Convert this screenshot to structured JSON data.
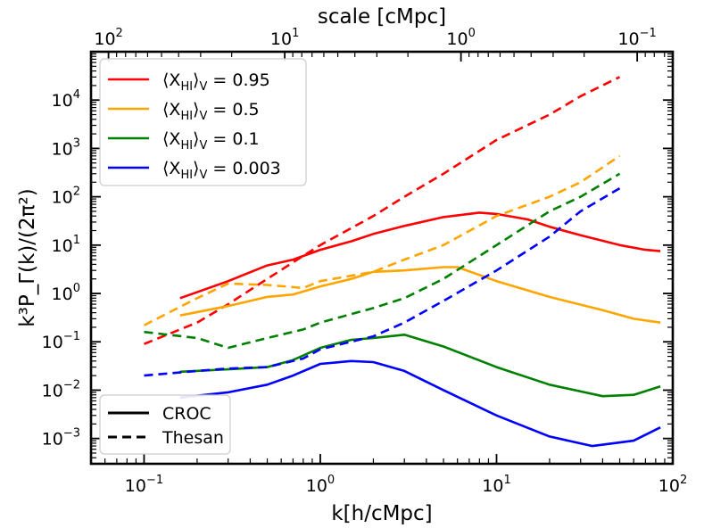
{
  "chart_data": {
    "type": "line",
    "title": "",
    "xlabel": "k[h/cMpc]",
    "ylabel": "k³P_Γ(k)/(2π²)",
    "top_xlabel": "scale [cMpc]",
    "x_scale": "log",
    "y_scale": "log",
    "xlim": [
      0.05,
      100
    ],
    "ylim": [
      0.0003,
      100000
    ],
    "x_ticks": [
      {
        "value": 0.1,
        "base": "10",
        "exp": "−1"
      },
      {
        "value": 1,
        "base": "10",
        "exp": "0"
      },
      {
        "value": 10,
        "base": "10",
        "exp": "1"
      },
      {
        "value": 100,
        "base": "10",
        "exp": "2"
      }
    ],
    "y_ticks": [
      {
        "value": 0.001,
        "base": "10",
        "exp": "−3"
      },
      {
        "value": 0.01,
        "base": "10",
        "exp": "−2"
      },
      {
        "value": 0.1,
        "base": "10",
        "exp": "−1"
      },
      {
        "value": 1,
        "base": "10",
        "exp": "0"
      },
      {
        "value": 10,
        "base": "10",
        "exp": "1"
      },
      {
        "value": 100,
        "base": "10",
        "exp": "2"
      },
      {
        "value": 1000,
        "base": "10",
        "exp": "3"
      },
      {
        "value": 10000,
        "base": "10",
        "exp": "4"
      }
    ],
    "top_ticks": [
      {
        "scale": 100,
        "base": "10",
        "exp": "2"
      },
      {
        "scale": 10,
        "base": "10",
        "exp": "1"
      },
      {
        "scale": 1,
        "base": "10",
        "exp": "0"
      },
      {
        "scale": 0.1,
        "base": "10",
        "exp": "−1"
      }
    ],
    "legend_position": "upper left",
    "legend_entries": [
      {
        "prefix": "⟨X",
        "sub": "HI",
        "mid": "⟩",
        "sub2": "V",
        "value": " = 0.95",
        "color": "#ff0000"
      },
      {
        "prefix": "⟨X",
        "sub": "HI",
        "mid": "⟩",
        "sub2": "V",
        "value": " = 0.5",
        "color": "#ffa500"
      },
      {
        "prefix": "⟨X",
        "sub": "HI",
        "mid": "⟩",
        "sub2": "V",
        "value": " = 0.1",
        "color": "#008000"
      },
      {
        "prefix": "⟨X",
        "sub": "HI",
        "mid": "⟩",
        "sub2": "V",
        "value": " = 0.003",
        "color": "#0000ff"
      }
    ],
    "style_legend_position": "lower left",
    "style_legend": [
      {
        "label": "CROC",
        "dash": "solid"
      },
      {
        "label": "Thesan",
        "dash": "dashed"
      }
    ],
    "series": [
      {
        "name": "⟨X_HI⟩_V = 0.95",
        "model": "CROC",
        "color": "#ff0000",
        "dash": "solid",
        "x": [
          0.16,
          0.3,
          0.5,
          0.7,
          1.0,
          1.5,
          2.0,
          3.0,
          5.0,
          8.0,
          10.0,
          15.0,
          20.0,
          30.0,
          50.0,
          70.0,
          85.0
        ],
        "y": [
          0.8,
          1.8,
          3.8,
          5.0,
          8.0,
          12.0,
          17.0,
          25.0,
          38.0,
          47.0,
          44.0,
          34.0,
          24.0,
          16.0,
          10.0,
          8.0,
          7.5
        ]
      },
      {
        "name": "⟨X_HI⟩_V = 0.95",
        "model": "Thesan",
        "color": "#ff0000",
        "dash": "dashed",
        "x": [
          0.1,
          0.2,
          0.3,
          0.5,
          0.8,
          1.0,
          2.0,
          3.0,
          5.0,
          10.0,
          20.0,
          30.0,
          50.0
        ],
        "y": [
          0.09,
          0.25,
          0.6,
          2.0,
          6.0,
          10.0,
          40.0,
          100.0,
          300.0,
          1500.0,
          5000.0,
          12000.0,
          30000.0
        ]
      },
      {
        "name": "⟨X_HI⟩_V = 0.5",
        "model": "CROC",
        "color": "#ffa500",
        "dash": "solid",
        "x": [
          0.16,
          0.3,
          0.5,
          0.7,
          1.0,
          1.5,
          2.0,
          3.0,
          5.0,
          6.0,
          10.0,
          20.0,
          40.0,
          60.0,
          85.0
        ],
        "y": [
          0.35,
          0.55,
          0.85,
          0.95,
          1.4,
          2.0,
          2.8,
          3.0,
          3.5,
          3.5,
          1.8,
          0.85,
          0.45,
          0.3,
          0.25
        ]
      },
      {
        "name": "⟨X_HI⟩_V = 0.5",
        "model": "Thesan",
        "color": "#ffa500",
        "dash": "dashed",
        "x": [
          0.1,
          0.2,
          0.3,
          0.5,
          0.8,
          1.0,
          2.0,
          3.0,
          5.0,
          10.0,
          20.0,
          30.0,
          50.0
        ],
        "y": [
          0.22,
          0.8,
          1.6,
          1.5,
          1.3,
          1.8,
          2.8,
          5.0,
          10.0,
          40.0,
          100.0,
          200.0,
          700.0
        ]
      },
      {
        "name": "⟨X_HI⟩_V = 0.1",
        "model": "CROC",
        "color": "#008000",
        "dash": "solid",
        "x": [
          0.16,
          0.3,
          0.5,
          0.7,
          1.0,
          1.5,
          2.0,
          3.0,
          5.0,
          10.0,
          20.0,
          40.0,
          60.0,
          85.0
        ],
        "y": [
          0.024,
          0.027,
          0.03,
          0.042,
          0.075,
          0.11,
          0.12,
          0.14,
          0.08,
          0.03,
          0.013,
          0.0075,
          0.008,
          0.012
        ]
      },
      {
        "name": "⟨X_HI⟩_V = 0.1",
        "model": "Thesan",
        "color": "#008000",
        "dash": "dashed",
        "x": [
          0.1,
          0.2,
          0.3,
          0.5,
          0.8,
          1.0,
          2.0,
          3.0,
          5.0,
          10.0,
          20.0,
          30.0,
          50.0
        ],
        "y": [
          0.16,
          0.12,
          0.075,
          0.12,
          0.18,
          0.25,
          0.5,
          0.8,
          2.0,
          10.0,
          50.0,
          100.0,
          300.0
        ]
      },
      {
        "name": "⟨X_HI⟩_V = 0.003",
        "model": "CROC",
        "color": "#0000ff",
        "dash": "solid",
        "x": [
          0.16,
          0.3,
          0.5,
          0.7,
          1.0,
          1.5,
          2.0,
          3.0,
          5.0,
          10.0,
          20.0,
          35.0,
          60.0,
          85.0
        ],
        "y": [
          0.007,
          0.009,
          0.013,
          0.02,
          0.035,
          0.04,
          0.038,
          0.025,
          0.01,
          0.003,
          0.0011,
          0.0007,
          0.0009,
          0.0017
        ]
      },
      {
        "name": "⟨X_HI⟩_V = 0.003",
        "model": "Thesan",
        "color": "#0000ff",
        "dash": "dashed",
        "x": [
          0.1,
          0.2,
          0.3,
          0.5,
          0.8,
          1.0,
          2.0,
          3.0,
          5.0,
          10.0,
          20.0,
          30.0,
          50.0
        ],
        "y": [
          0.02,
          0.025,
          0.028,
          0.03,
          0.045,
          0.07,
          0.13,
          0.25,
          0.7,
          3.0,
          15.0,
          50.0,
          150.0
        ]
      }
    ]
  }
}
